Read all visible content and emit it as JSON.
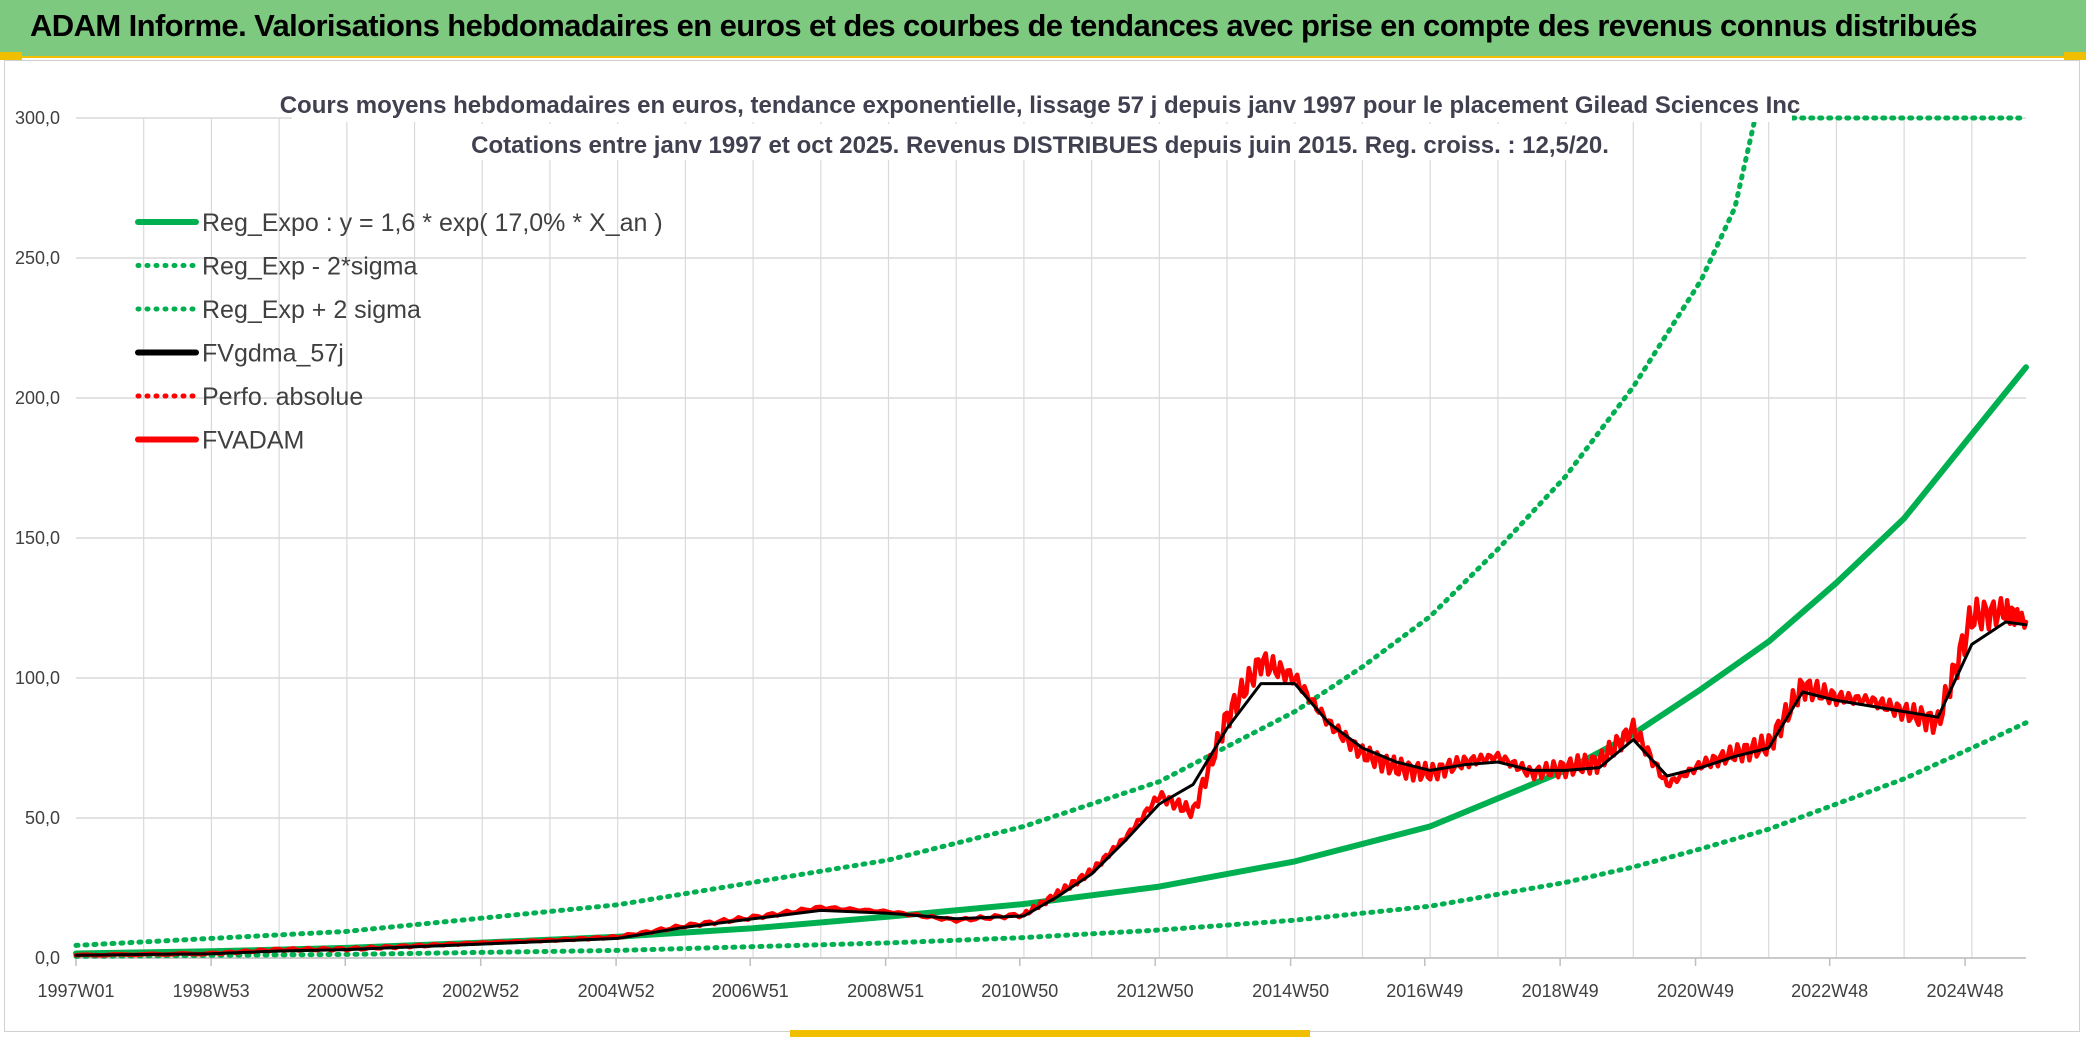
{
  "page": {
    "banner_title": "ADAM Informe. Valorisations hebdomadaires en euros et des courbes de tendances avec prise en compte des revenus connus distribués"
  },
  "colors": {
    "banner": "#7dc97f",
    "reg_green": "#00b050",
    "fvadam_red": "#ff0000",
    "gdma_black": "#000000",
    "grid": "#d9d9d9"
  },
  "chart_data": {
    "type": "line",
    "title": "Cours moyens hebdomadaires en euros, tendance exponentielle, lissage 57 j depuis janv 1997 pour le placement Gilead Sciences Inc",
    "subtitle": "Cotations entre janv 1997 et oct 2025. Revenus DISTRIBUES depuis juin 2015. Reg. croiss. : 12,5/20.",
    "xlabel": "",
    "ylabel": "",
    "ylim": [
      0,
      300
    ],
    "xlim": [
      1997.0,
      2025.8
    ],
    "y_ticks": [
      "0,0",
      "50,0",
      "100,0",
      "150,0",
      "200,0",
      "250,0",
      "300,0"
    ],
    "x_ticks": [
      "1997W01",
      "1998W53",
      "2000W52",
      "2002W52",
      "2004W52",
      "2006W51",
      "2008W51",
      "2010W50",
      "2012W50",
      "2014W50",
      "2016W49",
      "2018W49",
      "2020W49",
      "2022W48",
      "2024W48"
    ],
    "grid": true,
    "legend_position": "top-left",
    "legend": [
      {
        "name": "Reg_Expo : y = 1,6 * exp( 17,0% *  X_an )",
        "color": "#00b050",
        "style": "solid"
      },
      {
        "name": "Reg_Exp - 2*sigma",
        "color": "#00b050",
        "style": "dotted"
      },
      {
        "name": "Reg_Exp + 2 sigma",
        "color": "#00b050",
        "style": "dotted"
      },
      {
        "name": "FVgdma_57j",
        "color": "#000000",
        "style": "solid"
      },
      {
        "name": "Perfo. absolue",
        "color": "#ff0000",
        "style": "dotted"
      },
      {
        "name": "FVADAM",
        "color": "#ff0000",
        "style": "solid"
      }
    ],
    "series": [
      {
        "name": "Reg_Expo : y = 1,6 * exp( 17,0% *  X_an )",
        "x": [
          1997.0,
          1999.0,
          2001.0,
          2003.0,
          2005.0,
          2007.0,
          2009.0,
          2011.0,
          2013.0,
          2015.0,
          2017.0,
          2019.0,
          2020.0,
          2021.0,
          2022.0,
          2023.0,
          2024.0,
          2025.0,
          2025.8
        ],
        "y": [
          1.6,
          2.4,
          3.6,
          5.5,
          7.6,
          10.6,
          14.8,
          19.3,
          25.5,
          34.5,
          47.0,
          67.0,
          80.0,
          96.0,
          113.0,
          134.0,
          157.0,
          187.0,
          211.0
        ]
      },
      {
        "name": "Reg_Exp - 2*sigma",
        "x": [
          1997.0,
          2001.0,
          2005.0,
          2009.0,
          2011.0,
          2013.0,
          2015.0,
          2017.0,
          2019.0,
          2020.0,
          2021.0,
          2022.0,
          2023.0,
          2024.0,
          2025.0,
          2025.8
        ],
        "y": [
          0.6,
          1.3,
          2.7,
          5.4,
          7.3,
          10.0,
          13.5,
          18.5,
          27.0,
          32.5,
          39.0,
          46.0,
          55.0,
          64.0,
          75.0,
          84.0
        ]
      },
      {
        "name": "Reg_Exp + 2 sigma",
        "x": [
          1997.0,
          2001.0,
          2005.0,
          2009.0,
          2011.0,
          2013.0,
          2015.0,
          2016.0,
          2017.0,
          2018.0,
          2019.0,
          2020.0,
          2021.0,
          2021.5,
          2021.8,
          2025.8
        ],
        "y": [
          4.5,
          9.5,
          19.0,
          35.0,
          47.0,
          63.0,
          88.0,
          104.0,
          122.0,
          146.0,
          172.0,
          204.0,
          242.0,
          268.0,
          300.0,
          300.0
        ]
      },
      {
        "name": "FVgdma_57j",
        "x": [
          1997.0,
          1999.0,
          2000.0,
          2001.0,
          2002.0,
          2003.0,
          2004.0,
          2005.0,
          2006.0,
          2007.0,
          2008.0,
          2009.0,
          2010.0,
          2011.0,
          2011.5,
          2012.0,
          2012.5,
          2013.0,
          2013.5,
          2014.0,
          2014.5,
          2015.0,
          2015.5,
          2016.0,
          2016.5,
          2017.0,
          2017.5,
          2018.0,
          2018.5,
          2019.0,
          2019.5,
          2020.0,
          2020.5,
          2021.0,
          2021.5,
          2022.0,
          2022.5,
          2023.0,
          2023.5,
          2024.0,
          2024.5,
          2025.0,
          2025.5,
          2025.8
        ],
        "y": [
          1.0,
          1.5,
          2.5,
          3.0,
          4.0,
          5.0,
          6.0,
          7.0,
          11.0,
          14.0,
          17.0,
          16.0,
          14.0,
          15.0,
          22.0,
          30.0,
          42.0,
          55.0,
          62.0,
          82.0,
          98.0,
          98.0,
          84.0,
          75.0,
          70.0,
          67.0,
          69.0,
          70.0,
          67.0,
          67.0,
          68.0,
          78.0,
          65.0,
          68.0,
          72.0,
          75.0,
          95.0,
          92.0,
          90.0,
          88.0,
          86.0,
          112.0,
          120.0,
          119.0
        ]
      },
      {
        "name": "FVADAM",
        "x": [
          1997.0,
          1999.0,
          2000.0,
          2001.0,
          2002.0,
          2003.0,
          2004.0,
          2005.0,
          2006.0,
          2007.0,
          2008.0,
          2009.0,
          2010.0,
          2011.0,
          2011.5,
          2012.0,
          2012.5,
          2013.0,
          2013.5,
          2014.0,
          2014.5,
          2015.0,
          2015.5,
          2016.0,
          2016.5,
          2017.0,
          2017.5,
          2018.0,
          2018.5,
          2019.0,
          2019.5,
          2020.0,
          2020.5,
          2021.0,
          2021.5,
          2022.0,
          2022.5,
          2023.0,
          2023.5,
          2024.0,
          2024.5,
          2025.0,
          2025.5,
          2025.8
        ],
        "y": [
          1.0,
          1.6,
          3.0,
          3.2,
          4.3,
          5.4,
          6.3,
          7.5,
          11.5,
          14.5,
          18.0,
          16.5,
          13.5,
          15.5,
          23.0,
          31.0,
          43.0,
          58.0,
          52.0,
          86.0,
          106.0,
          100.0,
          84.0,
          73.0,
          68.0,
          66.0,
          70.0,
          72.0,
          66.0,
          68.0,
          70.0,
          82.0,
          62.0,
          69.0,
          73.0,
          76.0,
          97.0,
          93.0,
          92.0,
          88.0,
          84.0,
          122.0,
          124.0,
          120.0
        ]
      }
    ]
  }
}
